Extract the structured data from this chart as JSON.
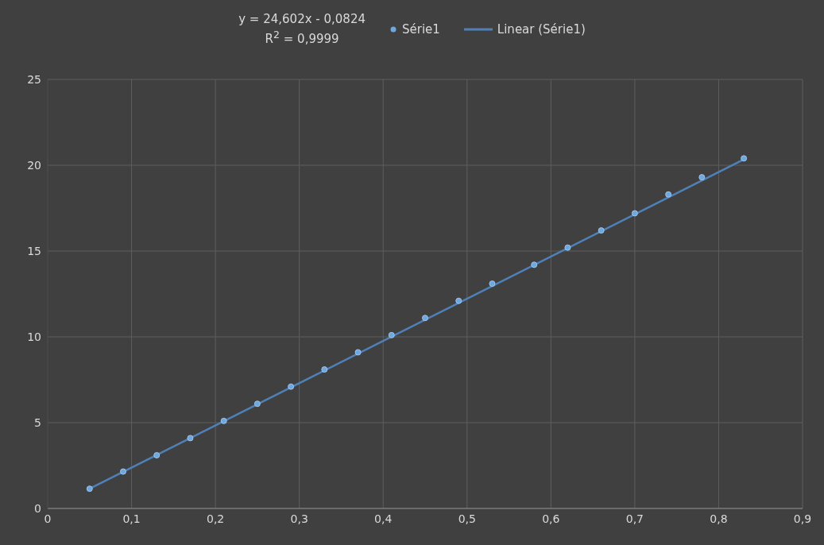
{
  "chart_data": {
    "type": "scatter",
    "annotations": [
      "y = 24,602x - 0,0824",
      "R$^{2}$ = 0,9999"
    ],
    "series": [
      {
        "name": "Série1",
        "color": "#6fa8dc",
        "x": [
          0.05,
          0.09,
          0.13,
          0.17,
          0.21,
          0.25,
          0.29,
          0.33,
          0.37,
          0.41,
          0.45,
          0.49,
          0.53,
          0.58,
          0.62,
          0.66,
          0.7,
          0.74,
          0.78,
          0.83
        ],
        "values": [
          1.15,
          2.15,
          3.1,
          4.1,
          5.1,
          6.1,
          7.1,
          8.1,
          9.1,
          10.1,
          11.1,
          12.1,
          13.1,
          14.2,
          15.2,
          16.2,
          17.2,
          18.3,
          19.3,
          20.4
        ]
      },
      {
        "name": "Linear (Série1)",
        "type": "line",
        "marker": "none",
        "color": "#4f81b8",
        "x": [
          0.05,
          0.83
        ],
        "values": [
          1.15,
          20.34
        ]
      }
    ],
    "xlim": [
      0,
      0.9
    ],
    "xticks": [
      0,
      {
        "value": 0.1,
        "label": "0,1"
      },
      {
        "value": 0.2,
        "label": "0,2"
      },
      {
        "value": 0.3,
        "label": "0,3"
      },
      {
        "value": 0.4,
        "label": "0,4"
      },
      {
        "value": 0.5,
        "label": "0,5"
      },
      {
        "value": 0.6,
        "label": "0,6"
      },
      {
        "value": 0.7,
        "label": "0,7"
      },
      {
        "value": 0.8,
        "label": "0,8"
      },
      {
        "value": 0.9,
        "label": "0,9"
      }
    ],
    "ylim": [
      0,
      25
    ],
    "yticks": [
      0,
      5,
      10,
      15,
      20,
      25
    ],
    "grid": true,
    "legend": "top",
    "marker": "circle",
    "line_style": "solid"
  }
}
